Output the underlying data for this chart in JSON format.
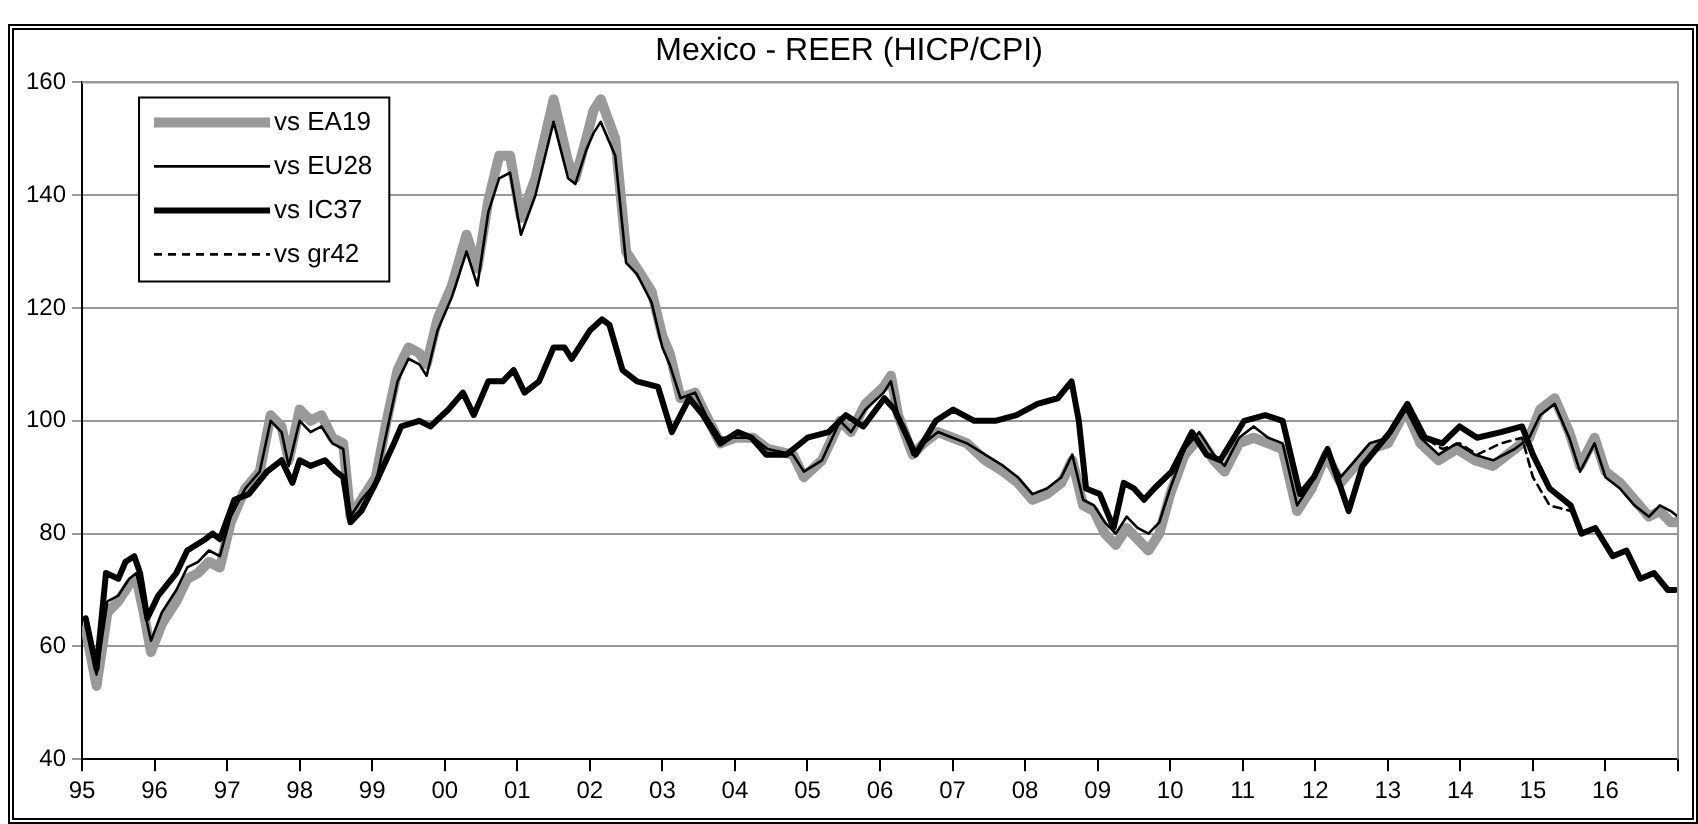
{
  "chart_data": {
    "type": "line",
    "title": "Mexico - REER (HICP/CPI)",
    "xlim": [
      1995,
      2017
    ],
    "xticks": [
      {
        "value": 1995,
        "label": "95"
      },
      {
        "value": 1996,
        "label": "96"
      },
      {
        "value": 1997,
        "label": "97"
      },
      {
        "value": 1998,
        "label": "98"
      },
      {
        "value": 1999,
        "label": "99"
      },
      {
        "value": 2000,
        "label": "00"
      },
      {
        "value": 2001,
        "label": "01"
      },
      {
        "value": 2002,
        "label": "02"
      },
      {
        "value": 2003,
        "label": "03"
      },
      {
        "value": 2004,
        "label": "04"
      },
      {
        "value": 2005,
        "label": "05"
      },
      {
        "value": 2006,
        "label": "06"
      },
      {
        "value": 2007,
        "label": "07"
      },
      {
        "value": 2008,
        "label": "08"
      },
      {
        "value": 2009,
        "label": "09"
      },
      {
        "value": 2010,
        "label": "10"
      },
      {
        "value": 2011,
        "label": "11"
      },
      {
        "value": 2012,
        "label": "12"
      },
      {
        "value": 2013,
        "label": "13"
      },
      {
        "value": 2014,
        "label": "14"
      },
      {
        "value": 2015,
        "label": "15"
      },
      {
        "value": 2016,
        "label": "16"
      },
      {
        "value": 2017,
        "label": null
      }
    ],
    "ylim": [
      40,
      160
    ],
    "yticks": [
      40,
      60,
      80,
      100,
      120,
      140,
      160
    ],
    "grid": "y",
    "legend": "top left",
    "marker": "none",
    "series": [
      {
        "name": "vs EA19",
        "color": "#999999",
        "x": [
          1995.05,
          1995.2,
          1995.35,
          1995.5,
          1995.65,
          1995.75,
          1995.85,
          1995.95,
          1996.1,
          1996.3,
          1996.45,
          1996.6,
          1996.75,
          1996.9,
          1997.05,
          1997.25,
          1997.45,
          1997.6,
          1997.75,
          1997.85,
          1998.0,
          1998.15,
          1998.3,
          1998.45,
          1998.6,
          1998.7,
          1998.85,
          1999.05,
          1999.2,
          1999.35,
          1999.5,
          1999.65,
          1999.75,
          1999.9,
          2000.1,
          2000.3,
          2000.45,
          2000.6,
          2000.75,
          2000.9,
          2001.05,
          2001.25,
          2001.5,
          2001.7,
          2001.8,
          2001.95,
          2002.05,
          2002.15,
          2002.35,
          2002.5,
          2002.65,
          2002.85,
          2003.0,
          2003.1,
          2003.25,
          2003.45,
          2003.6,
          2003.8,
          2004.0,
          2004.25,
          2004.45,
          2004.8,
          2004.95,
          2005.2,
          2005.45,
          2005.6,
          2005.8,
          2006.05,
          2006.15,
          2006.25,
          2006.45,
          2006.6,
          2006.8,
          2007.0,
          2007.2,
          2007.45,
          2007.7,
          2007.9,
          2008.1,
          2008.3,
          2008.5,
          2008.65,
          2008.8,
          2008.95,
          2009.1,
          2009.25,
          2009.4,
          2009.55,
          2009.7,
          2009.85,
          2010.0,
          2010.2,
          2010.4,
          2010.6,
          2010.75,
          2010.95,
          2011.15,
          2011.35,
          2011.55,
          2011.75,
          2011.95,
          2012.15,
          2012.35,
          2012.55,
          2012.75,
          2013.0,
          2013.25,
          2013.45,
          2013.7,
          2013.95,
          2014.2,
          2014.45,
          2014.75,
          2014.95,
          2015.1,
          2015.3,
          2015.5,
          2015.65,
          2015.85,
          2016.0,
          2016.2,
          2016.4,
          2016.6,
          2016.75,
          2016.9,
          2017.0
        ],
        "values": [
          63,
          53,
          66,
          68,
          71,
          72,
          66,
          59,
          64,
          68,
          72,
          73,
          75,
          74,
          82,
          88,
          91,
          101,
          99,
          93,
          102,
          100,
          101,
          97,
          96,
          83,
          86,
          90,
          100,
          109,
          113,
          112,
          110,
          118,
          124,
          133,
          127,
          139,
          147,
          147,
          136,
          143,
          157,
          146,
          143,
          150,
          155,
          157,
          150,
          130,
          127,
          123,
          115,
          112,
          104,
          105,
          101,
          96,
          97,
          97,
          95,
          94,
          90,
          93,
          100,
          98,
          103,
          106,
          108,
          101,
          94,
          96,
          98,
          97,
          96,
          93,
          91,
          89,
          86,
          87,
          89,
          93,
          85,
          84,
          80,
          78,
          81,
          79,
          77,
          80,
          87,
          94,
          97,
          93,
          91,
          96,
          97,
          96,
          95,
          84,
          88,
          94,
          89,
          92,
          95,
          96,
          102,
          96,
          93,
          95,
          93,
          92,
          95,
          97,
          102,
          104,
          98,
          92,
          97,
          91,
          89,
          86,
          83,
          84,
          82,
          82
        ]
      },
      {
        "name": "vs EU28",
        "color": "#000000",
        "x": [
          1995.05,
          1995.2,
          1995.35,
          1995.5,
          1995.65,
          1995.75,
          1995.85,
          1995.95,
          1996.1,
          1996.3,
          1996.45,
          1996.6,
          1996.75,
          1996.9,
          1997.05,
          1997.25,
          1997.45,
          1997.6,
          1997.75,
          1997.85,
          1998.0,
          1998.15,
          1998.3,
          1998.45,
          1998.6,
          1998.7,
          1998.85,
          1999.05,
          1999.2,
          1999.35,
          1999.5,
          1999.65,
          1999.75,
          1999.9,
          2000.1,
          2000.3,
          2000.45,
          2000.6,
          2000.75,
          2000.9,
          2001.05,
          2001.25,
          2001.5,
          2001.7,
          2001.8,
          2001.95,
          2002.05,
          2002.15,
          2002.35,
          2002.5,
          2002.65,
          2002.85,
          2003.0,
          2003.1,
          2003.25,
          2003.45,
          2003.6,
          2003.8,
          2004.0,
          2004.25,
          2004.45,
          2004.8,
          2004.95,
          2005.2,
          2005.45,
          2005.6,
          2005.8,
          2006.05,
          2006.15,
          2006.25,
          2006.45,
          2006.6,
          2006.8,
          2007.0,
          2007.2,
          2007.45,
          2007.7,
          2007.9,
          2008.1,
          2008.3,
          2008.5,
          2008.65,
          2008.8,
          2008.95,
          2009.1,
          2009.25,
          2009.4,
          2009.55,
          2009.7,
          2009.85,
          2010.0,
          2010.2,
          2010.4,
          2010.6,
          2010.75,
          2010.95,
          2011.15,
          2011.35,
          2011.55,
          2011.75,
          2011.95,
          2012.15,
          2012.35,
          2012.55,
          2012.75,
          2013.0,
          2013.25,
          2013.45,
          2013.7,
          2013.95,
          2014.2,
          2014.45,
          2014.75,
          2014.95,
          2015.1,
          2015.3,
          2015.5,
          2015.65,
          2015.85,
          2016.0,
          2016.2,
          2016.4,
          2016.6,
          2016.75,
          2016.9,
          2017.0
        ],
        "values": [
          64,
          55,
          68,
          69,
          72,
          73,
          67,
          61,
          66,
          70,
          74,
          75,
          77,
          76,
          83,
          88,
          91,
          100,
          98,
          92,
          100,
          98,
          99,
          96,
          95,
          83,
          86,
          89,
          98,
          107,
          111,
          110,
          108,
          116,
          122,
          130,
          124,
          137,
          143,
          144,
          133,
          140,
          153,
          143,
          142,
          148,
          151,
          153,
          147,
          128,
          126,
          121,
          113,
          110,
          104,
          105,
          101,
          97,
          97,
          97,
          95,
          94,
          91,
          93,
          100,
          98,
          102,
          105,
          107,
          101,
          94,
          96,
          98,
          97,
          96,
          94,
          92,
          90,
          87,
          88,
          90,
          94,
          86,
          85,
          82,
          80,
          83,
          81,
          80,
          82,
          88,
          95,
          98,
          94,
          92,
          97,
          99,
          97,
          96,
          85,
          89,
          95,
          90,
          93,
          96,
          97,
          102,
          97,
          94,
          96,
          94,
          93,
          95,
          97,
          101,
          103,
          97,
          91,
          96,
          90,
          88,
          85,
          83,
          85,
          84,
          83
        ]
      },
      {
        "name": "vs IC37",
        "color": "#000000",
        "x": [
          1995.05,
          1995.2,
          1995.33,
          1995.5,
          1995.6,
          1995.72,
          1995.8,
          1995.9,
          1996.05,
          1996.3,
          1996.45,
          1996.7,
          1996.8,
          1996.9,
          1997.1,
          1997.3,
          1997.55,
          1997.75,
          1997.9,
          1998.0,
          1998.15,
          1998.35,
          1998.5,
          1998.6,
          1998.7,
          1998.85,
          1999.05,
          1999.3,
          1999.4,
          1999.65,
          1999.8,
          2000.05,
          2000.25,
          2000.4,
          2000.6,
          2000.8,
          2000.95,
          2001.1,
          2001.3,
          2001.5,
          2001.65,
          2001.75,
          2002.0,
          2002.17,
          2002.27,
          2002.45,
          2002.65,
          2002.94,
          2003.13,
          2003.37,
          2003.56,
          2003.8,
          2004.04,
          2004.23,
          2004.43,
          2004.71,
          2005.0,
          2005.29,
          2005.53,
          2005.77,
          2006.06,
          2006.2,
          2006.49,
          2006.77,
          2007.01,
          2007.3,
          2007.59,
          2007.88,
          2008.17,
          2008.45,
          2008.64,
          2008.74,
          2008.84,
          2009.03,
          2009.22,
          2009.36,
          2009.5,
          2009.64,
          2009.78,
          2010.02,
          2010.3,
          2010.5,
          2010.69,
          2011.02,
          2011.31,
          2011.55,
          2011.79,
          2011.98,
          2012.17,
          2012.46,
          2012.65,
          2012.84,
          2013.03,
          2013.27,
          2013.51,
          2013.75,
          2013.99,
          2014.23,
          2014.56,
          2014.85,
          2015.0,
          2015.23,
          2015.52,
          2015.67,
          2015.86,
          2016.1,
          2016.29,
          2016.48,
          2016.67,
          2016.86,
          2016.96
        ],
        "values": [
          65,
          56,
          73,
          72,
          75,
          76,
          73,
          65,
          69,
          73,
          77,
          79,
          80,
          79,
          86,
          87,
          91,
          93,
          89,
          93,
          92,
          93,
          91,
          90,
          82,
          84,
          89,
          96,
          99,
          100,
          99,
          102,
          105,
          101,
          107,
          107,
          109,
          105,
          107,
          113,
          113,
          111,
          116,
          118,
          117,
          109,
          107,
          106,
          98,
          104,
          101,
          96,
          98,
          97,
          94,
          94,
          97,
          98,
          101,
          99,
          104,
          102,
          94,
          100,
          102,
          100,
          100,
          101,
          103,
          104,
          107,
          100,
          88,
          87,
          81,
          89,
          88,
          86,
          88,
          91,
          98,
          94,
          93,
          100,
          101,
          100,
          87,
          90,
          95,
          84,
          92,
          95,
          98,
          103,
          97,
          96,
          99,
          97,
          98,
          99,
          94,
          88,
          85,
          80,
          81,
          76,
          77,
          72,
          73,
          70,
          70
        ]
      },
      {
        "name": "vs gr42",
        "color": "#000000",
        "line_style": "dashed",
        "x": [
          2013.27,
          2013.51,
          2013.75,
          2013.99,
          2014.23,
          2014.56,
          2014.85,
          2015.0,
          2015.23,
          2015.52
        ],
        "values": [
          103,
          97,
          95,
          96,
          94,
          96,
          97,
          90,
          85,
          84
        ]
      }
    ]
  }
}
